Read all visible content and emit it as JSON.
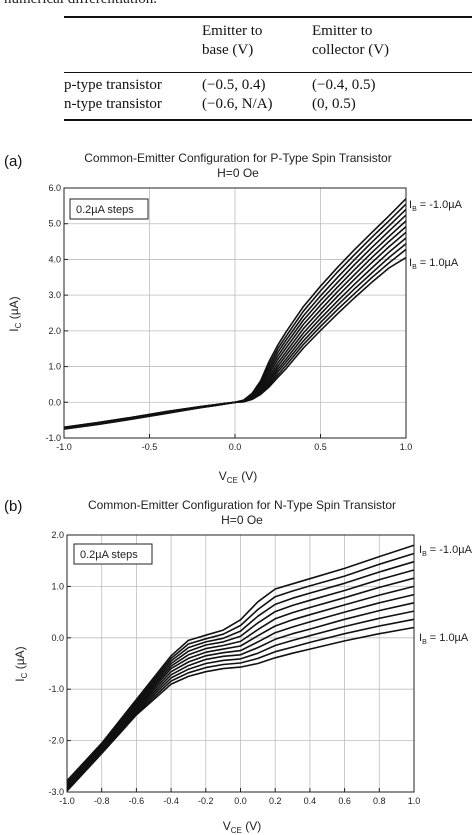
{
  "top_text": "numerical differentiation.",
  "table": {
    "headers": [
      [
        "Emitter to",
        "base (V)"
      ],
      [
        "Emitter to",
        "collector (V)"
      ]
    ],
    "rows": [
      {
        "label": "p-type transistor",
        "base": "(−0.5, 0.4)",
        "collector": "(−0.4, 0.5)"
      },
      {
        "label": "n-type transistor",
        "base": "(−0.6, N/A)",
        "collector": "(0, 0.5)"
      }
    ]
  },
  "chart_data": [
    {
      "type": "line",
      "panel_label": "(a)",
      "title": "Common-Emitter Configuration for P-Type Spin Transistor",
      "subtitle": "H=0 Oe",
      "xlabel": "V",
      "xlabel_sub": "CE",
      "xlabel_unit": " (V)",
      "ylabel": "I",
      "ylabel_sub": "C",
      "ylabel_unit": " (µA)",
      "xlim": [
        -1.0,
        1.0
      ],
      "ylim": [
        -1.0,
        6.0
      ],
      "x_ticks": [
        "-1.0",
        "-0.5",
        "0.0",
        "0.5",
        "1.0"
      ],
      "y_ticks": [
        "-1.0",
        "0.0",
        "1.0",
        "2.0",
        "3.0",
        "4.0",
        "5.0",
        "6.0"
      ],
      "grid": true,
      "annotation_box": "0.2µA steps",
      "curve_labels": [
        {
          "name": "I",
          "sub": "B",
          "value": " = -1.0µA"
        },
        {
          "name": "I",
          "sub": "B",
          "value": " = 1.0µA"
        }
      ],
      "x": [
        -1.0,
        -0.8,
        -0.6,
        -0.4,
        -0.2,
        -0.1,
        0.0,
        0.05,
        0.1,
        0.15,
        0.2,
        0.25,
        0.3,
        0.4,
        0.5,
        0.6,
        0.7,
        0.8,
        0.9,
        1.0
      ],
      "series": [
        {
          "values": [
            -0.7,
            -0.57,
            -0.42,
            -0.26,
            -0.12,
            -0.06,
            0.0,
            0.06,
            0.25,
            0.6,
            1.15,
            1.6,
            1.98,
            2.68,
            3.25,
            3.78,
            4.28,
            4.75,
            5.22,
            5.7
          ]
        },
        {
          "values": [
            -0.7,
            -0.57,
            -0.42,
            -0.26,
            -0.12,
            -0.06,
            0.0,
            0.05,
            0.22,
            0.55,
            1.05,
            1.5,
            1.86,
            2.55,
            3.12,
            3.65,
            4.14,
            4.62,
            5.08,
            5.55
          ]
        },
        {
          "values": [
            -0.71,
            -0.58,
            -0.43,
            -0.27,
            -0.13,
            -0.06,
            0.0,
            0.05,
            0.2,
            0.5,
            0.96,
            1.4,
            1.75,
            2.42,
            2.98,
            3.5,
            4.0,
            4.48,
            4.94,
            5.4
          ]
        },
        {
          "values": [
            -0.71,
            -0.58,
            -0.43,
            -0.27,
            -0.13,
            -0.06,
            0.0,
            0.04,
            0.18,
            0.46,
            0.88,
            1.3,
            1.64,
            2.3,
            2.85,
            3.36,
            3.86,
            4.33,
            4.79,
            5.24
          ]
        },
        {
          "values": [
            -0.72,
            -0.59,
            -0.44,
            -0.28,
            -0.13,
            -0.07,
            0.0,
            0.04,
            0.16,
            0.42,
            0.8,
            1.2,
            1.53,
            2.18,
            2.72,
            3.23,
            3.72,
            4.19,
            4.64,
            5.08
          ]
        },
        {
          "values": [
            -0.72,
            -0.59,
            -0.44,
            -0.28,
            -0.14,
            -0.07,
            0.0,
            0.03,
            0.14,
            0.38,
            0.72,
            1.1,
            1.42,
            2.06,
            2.59,
            3.1,
            3.58,
            4.05,
            4.5,
            4.92
          ]
        },
        {
          "values": [
            -0.73,
            -0.6,
            -0.45,
            -0.29,
            -0.14,
            -0.07,
            0.0,
            0.03,
            0.12,
            0.34,
            0.65,
            1.01,
            1.32,
            1.94,
            2.47,
            2.97,
            3.45,
            3.91,
            4.35,
            4.76
          ]
        },
        {
          "values": [
            -0.73,
            -0.6,
            -0.45,
            -0.29,
            -0.14,
            -0.07,
            0.0,
            0.02,
            0.11,
            0.31,
            0.59,
            0.93,
            1.22,
            1.83,
            2.35,
            2.84,
            3.31,
            3.76,
            4.2,
            4.6
          ]
        },
        {
          "values": [
            -0.74,
            -0.61,
            -0.46,
            -0.3,
            -0.15,
            -0.08,
            0.0,
            0.02,
            0.1,
            0.28,
            0.53,
            0.85,
            1.13,
            1.72,
            2.23,
            2.72,
            3.18,
            3.62,
            4.05,
            4.44
          ]
        },
        {
          "values": [
            -0.74,
            -0.61,
            -0.46,
            -0.3,
            -0.15,
            -0.08,
            0.0,
            0.02,
            0.09,
            0.25,
            0.48,
            0.77,
            1.04,
            1.62,
            2.12,
            2.6,
            3.05,
            3.49,
            3.9,
            4.28
          ]
        },
        {
          "values": [
            -0.75,
            -0.62,
            -0.47,
            -0.31,
            -0.15,
            -0.08,
            0.0,
            0.01,
            0.08,
            0.22,
            0.43,
            0.7,
            0.95,
            1.52,
            2.01,
            2.48,
            2.93,
            3.36,
            3.76,
            4.05
          ]
        }
      ]
    },
    {
      "type": "line",
      "panel_label": "(b)",
      "title": "Common-Emitter Configuration for N-Type Spin Transistor",
      "subtitle": "H=0 Oe",
      "xlabel": "V",
      "xlabel_sub": "CE",
      "xlabel_unit": " (V)",
      "ylabel": "I",
      "ylabel_sub": "C",
      "ylabel_unit": " (µA)",
      "xlim": [
        -1.0,
        1.0
      ],
      "ylim": [
        -3.0,
        2.0
      ],
      "x_ticks": [
        "-1.0",
        "-0.8",
        "-0.6",
        "-0.4",
        "-0.2",
        "0.0",
        "0.2",
        "0.4",
        "0.6",
        "0.8",
        "1.0"
      ],
      "y_ticks": [
        "-3.0",
        "-2.0",
        "-1.0",
        "0.0",
        "1.0",
        "2.0"
      ],
      "grid": true,
      "annotation_box": "0.2µA steps",
      "curve_labels": [
        {
          "name": "I",
          "sub": "B",
          "value": " = -1.0µA"
        },
        {
          "name": "I",
          "sub": "B",
          "value": " = 1.0µA"
        }
      ],
      "x": [
        -1.0,
        -0.8,
        -0.6,
        -0.4,
        -0.3,
        -0.2,
        -0.1,
        0.0,
        0.1,
        0.2,
        0.3,
        0.4,
        0.6,
        0.8,
        1.0
      ],
      "series": [
        {
          "values": [
            -2.78,
            -2.05,
            -1.2,
            -0.35,
            -0.05,
            0.05,
            0.15,
            0.35,
            0.7,
            0.95,
            1.05,
            1.15,
            1.35,
            1.58,
            1.8
          ]
        },
        {
          "values": [
            -2.8,
            -2.07,
            -1.23,
            -0.4,
            -0.12,
            -0.02,
            0.07,
            0.24,
            0.55,
            0.8,
            0.91,
            1.01,
            1.2,
            1.43,
            1.64
          ]
        },
        {
          "values": [
            -2.82,
            -2.09,
            -1.26,
            -0.45,
            -0.19,
            -0.08,
            -0.01,
            0.13,
            0.42,
            0.65,
            0.77,
            0.87,
            1.06,
            1.28,
            1.48
          ]
        },
        {
          "values": [
            -2.84,
            -2.11,
            -1.29,
            -0.5,
            -0.26,
            -0.14,
            -0.08,
            0.03,
            0.29,
            0.51,
            0.63,
            0.73,
            0.92,
            1.13,
            1.32
          ]
        },
        {
          "values": [
            -2.86,
            -2.13,
            -1.32,
            -0.55,
            -0.33,
            -0.21,
            -0.15,
            -0.07,
            0.16,
            0.37,
            0.49,
            0.59,
            0.78,
            0.98,
            1.16
          ]
        },
        {
          "values": [
            -2.88,
            -2.15,
            -1.35,
            -0.6,
            -0.4,
            -0.28,
            -0.22,
            -0.16,
            0.04,
            0.23,
            0.35,
            0.45,
            0.64,
            0.83,
            1.0
          ]
        },
        {
          "values": [
            -2.9,
            -2.17,
            -1.38,
            -0.66,
            -0.47,
            -0.35,
            -0.29,
            -0.25,
            -0.08,
            0.1,
            0.21,
            0.31,
            0.5,
            0.68,
            0.84
          ]
        },
        {
          "values": [
            -2.92,
            -2.19,
            -1.41,
            -0.72,
            -0.54,
            -0.42,
            -0.36,
            -0.33,
            -0.19,
            -0.03,
            0.08,
            0.17,
            0.36,
            0.53,
            0.68
          ]
        },
        {
          "values": [
            -2.94,
            -2.21,
            -1.44,
            -0.78,
            -0.61,
            -0.5,
            -0.44,
            -0.41,
            -0.3,
            -0.15,
            -0.05,
            0.04,
            0.22,
            0.38,
            0.52
          ]
        },
        {
          "values": [
            -2.96,
            -2.23,
            -1.47,
            -0.84,
            -0.68,
            -0.58,
            -0.52,
            -0.49,
            -0.4,
            -0.27,
            -0.18,
            -0.09,
            0.08,
            0.23,
            0.36
          ]
        },
        {
          "values": [
            -2.98,
            -2.25,
            -1.5,
            -0.9,
            -0.75,
            -0.66,
            -0.6,
            -0.57,
            -0.5,
            -0.39,
            -0.3,
            -0.22,
            -0.06,
            0.08,
            0.2
          ]
        }
      ]
    }
  ]
}
